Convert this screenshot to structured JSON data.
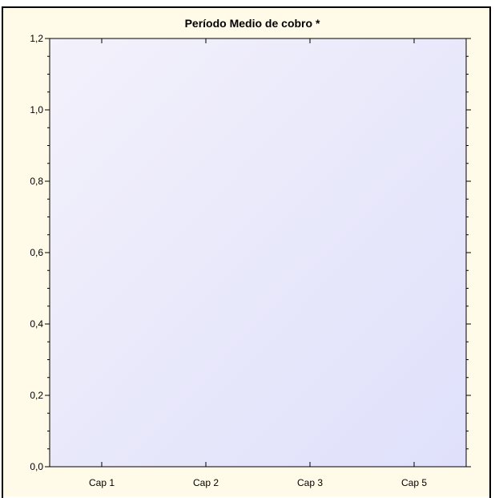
{
  "colors": {
    "frame_bg": "#fffbe8",
    "plot_gradient_start": "#f3f1fb",
    "plot_gradient_end": "#dfe0fb",
    "frame_border": "#000000",
    "axis": "#000000"
  },
  "chart_data": {
    "type": "line",
    "title": "Período Medio de cobro *",
    "xlabel": "",
    "ylabel": "",
    "categories": [
      "Cap 1",
      "Cap 2",
      "Cap 3",
      "Cap 5"
    ],
    "series": [],
    "ylim": [
      0,
      1.2
    ],
    "y_ticks": [
      {
        "value": 0.0,
        "label": "0,0"
      },
      {
        "value": 0.2,
        "label": "0,2"
      },
      {
        "value": 0.4,
        "label": "0,4"
      },
      {
        "value": 0.6,
        "label": "0,6"
      },
      {
        "value": 0.8,
        "label": "0,8"
      },
      {
        "value": 1.0,
        "label": "1,0"
      },
      {
        "value": 1.2,
        "label": "1,2"
      }
    ],
    "y_minor_step": 0.05,
    "grid": false,
    "legend": "none"
  }
}
